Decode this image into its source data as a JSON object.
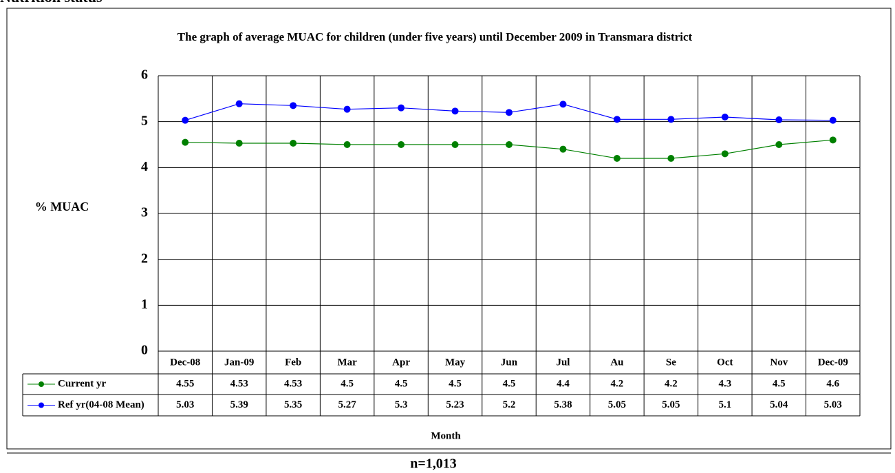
{
  "header": "Nutrition status",
  "chart_data": {
    "type": "line",
    "title": "The graph of average MUAC for children (under five years) until  December  2009 in  Transmara district",
    "y_label": "% MUAC",
    "x_label": "Month",
    "note": "n=1,013",
    "categories": [
      "Dec-08",
      "Jan-09",
      "Feb",
      "Mar",
      "Apr",
      "May",
      "Jun",
      "Jul",
      "Au",
      "Se",
      "Oct",
      "Nov",
      "Dec-09"
    ],
    "series": [
      {
        "name": "Current yr",
        "color": "#008000",
        "values": [
          4.55,
          4.53,
          4.53,
          4.5,
          4.5,
          4.5,
          4.5,
          4.4,
          4.2,
          4.2,
          4.3,
          4.5,
          4.6
        ]
      },
      {
        "name": "Ref yr(04-08 Mean)",
        "color": "#0000ff",
        "values": [
          5.03,
          5.39,
          5.35,
          5.27,
          5.3,
          5.23,
          5.2,
          5.38,
          5.05,
          5.05,
          5.1,
          5.04,
          5.03
        ]
      }
    ],
    "ylim": [
      0,
      6
    ],
    "yticks": [
      0,
      1,
      2,
      3,
      4,
      5,
      6
    ],
    "grid": true
  }
}
